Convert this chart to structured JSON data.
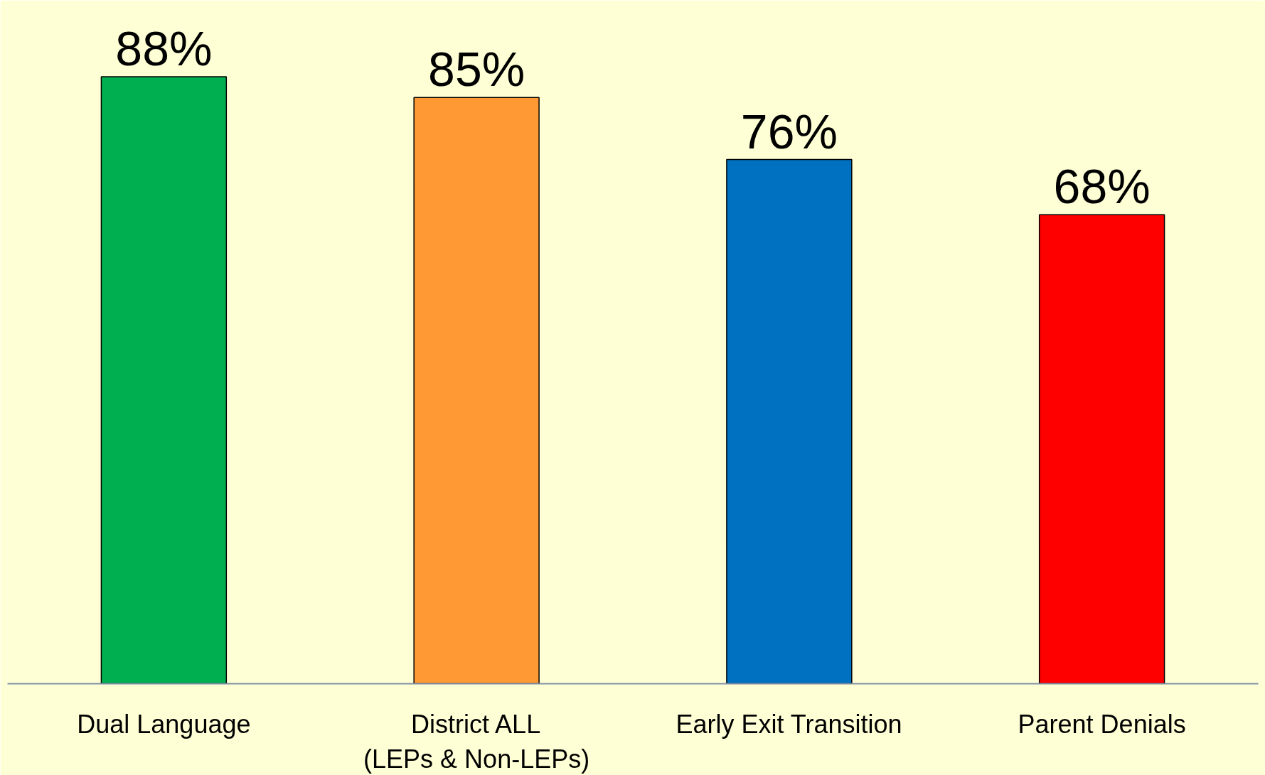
{
  "chart_data": {
    "type": "bar",
    "categories": [
      "Dual Language",
      "District ALL\n(LEPs & Non-LEPs)",
      "Early Exit Transition",
      "Parent Denials"
    ],
    "values": [
      88,
      85,
      76,
      68
    ],
    "colors": [
      "#00b050",
      "#ff9933",
      "#0070c0",
      "#ff0000"
    ],
    "value_labels": [
      "88%",
      "85%",
      "76%",
      "68%"
    ],
    "grid": false
  }
}
